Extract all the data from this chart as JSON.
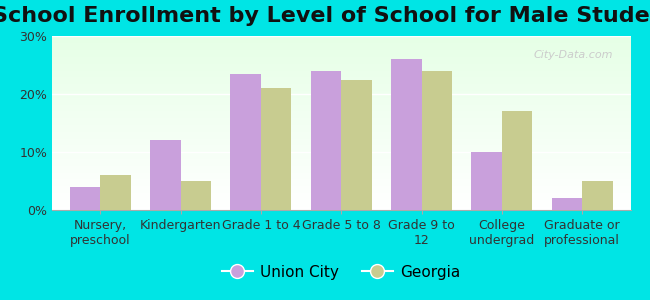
{
  "title": "School Enrollment by Level of School for Male Students",
  "categories": [
    "Nursery,\npreschool",
    "Kindergarten",
    "Grade 1 to 4",
    "Grade 5 to 8",
    "Grade 9 to\n12",
    "College\nundergrad",
    "Graduate or\nprofessional"
  ],
  "union_city": [
    4.0,
    12.0,
    23.5,
    24.0,
    26.0,
    10.0,
    2.0
  ],
  "georgia": [
    6.0,
    5.0,
    21.0,
    22.5,
    24.0,
    17.0,
    5.0
  ],
  "union_city_color": "#c9a0dc",
  "georgia_color": "#c8cc90",
  "background_color": "#00e5e5",
  "legend_union_city": "Union City",
  "legend_georgia": "Georgia",
  "ylim": [
    0,
    30
  ],
  "yticks": [
    0,
    10,
    20,
    30
  ],
  "ytick_labels": [
    "0%",
    "10%",
    "20%",
    "30%"
  ],
  "watermark": "City-Data.com",
  "bar_width": 0.38,
  "title_fontsize": 16,
  "tick_fontsize": 9,
  "legend_fontsize": 11
}
